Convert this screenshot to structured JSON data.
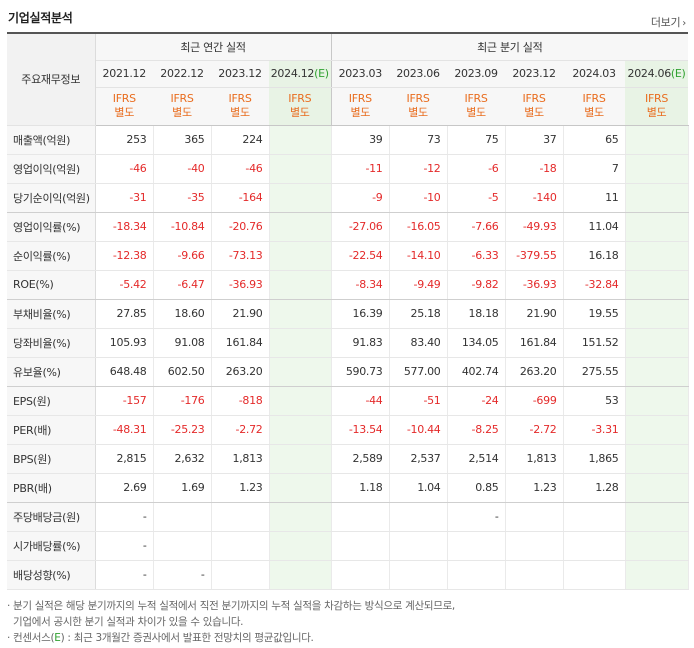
{
  "title": "기업실적분석",
  "more_label": "더보기",
  "more_icon": "chevron-right-icon",
  "header": {
    "row_head": "주요재무정보",
    "annual_group": "최근 연간 실적",
    "quarter_group": "최근 분기 실적",
    "annual_periods": [
      {
        "label": "2021.12",
        "est": ""
      },
      {
        "label": "2022.12",
        "est": ""
      },
      {
        "label": "2023.12",
        "est": ""
      },
      {
        "label": "2024.12",
        "est": "(E)"
      }
    ],
    "quarter_periods": [
      {
        "label": "2023.03",
        "est": ""
      },
      {
        "label": "2023.06",
        "est": ""
      },
      {
        "label": "2023.09",
        "est": ""
      },
      {
        "label": "2023.12",
        "est": ""
      },
      {
        "label": "2024.03",
        "est": ""
      },
      {
        "label": "2024.06",
        "est": "(E)"
      }
    ],
    "ifrs_top": "IFRS",
    "ifrs_bottom": "별도"
  },
  "rows": [
    {
      "label": "매출액(억원)",
      "annual": [
        "253",
        "365",
        "224",
        ""
      ],
      "quarter": [
        "39",
        "73",
        "75",
        "37",
        "65",
        ""
      ]
    },
    {
      "label": "영업이익(억원)",
      "annual": [
        "-46",
        "-40",
        "-46",
        ""
      ],
      "quarter": [
        "-11",
        "-12",
        "-6",
        "-18",
        "7",
        ""
      ]
    },
    {
      "label": "당기순이익(억원)",
      "annual": [
        "-31",
        "-35",
        "-164",
        ""
      ],
      "quarter": [
        "-9",
        "-10",
        "-5",
        "-140",
        "11",
        ""
      ]
    },
    {
      "label": "영업이익률(%)",
      "annual": [
        "-18.34",
        "-10.84",
        "-20.76",
        ""
      ],
      "quarter": [
        "-27.06",
        "-16.05",
        "-7.66",
        "-49.93",
        "11.04",
        ""
      ]
    },
    {
      "label": "순이익률(%)",
      "annual": [
        "-12.38",
        "-9.66",
        "-73.13",
        ""
      ],
      "quarter": [
        "-22.54",
        "-14.10",
        "-6.33",
        "-379.55",
        "16.18",
        ""
      ]
    },
    {
      "label": "ROE(%)",
      "annual": [
        "-5.42",
        "-6.47",
        "-36.93",
        ""
      ],
      "quarter": [
        "-8.34",
        "-9.49",
        "-9.82",
        "-36.93",
        "-32.84",
        ""
      ]
    },
    {
      "label": "부채비율(%)",
      "annual": [
        "27.85",
        "18.60",
        "21.90",
        ""
      ],
      "quarter": [
        "16.39",
        "25.18",
        "18.18",
        "21.90",
        "19.55",
        ""
      ]
    },
    {
      "label": "당좌비율(%)",
      "annual": [
        "105.93",
        "91.08",
        "161.84",
        ""
      ],
      "quarter": [
        "91.83",
        "83.40",
        "134.05",
        "161.84",
        "151.52",
        ""
      ]
    },
    {
      "label": "유보율(%)",
      "annual": [
        "648.48",
        "602.50",
        "263.20",
        ""
      ],
      "quarter": [
        "590.73",
        "577.00",
        "402.74",
        "263.20",
        "275.55",
        ""
      ]
    },
    {
      "label": "EPS(원)",
      "annual": [
        "-157",
        "-176",
        "-818",
        ""
      ],
      "quarter": [
        "-44",
        "-51",
        "-24",
        "-699",
        "53",
        ""
      ]
    },
    {
      "label": "PER(배)",
      "annual": [
        "-48.31",
        "-25.23",
        "-2.72",
        ""
      ],
      "quarter": [
        "-13.54",
        "-10.44",
        "-8.25",
        "-2.72",
        "-3.31",
        ""
      ]
    },
    {
      "label": "BPS(원)",
      "annual": [
        "2,815",
        "2,632",
        "1,813",
        ""
      ],
      "quarter": [
        "2,589",
        "2,537",
        "2,514",
        "1,813",
        "1,865",
        ""
      ]
    },
    {
      "label": "PBR(배)",
      "annual": [
        "2.69",
        "1.69",
        "1.23",
        ""
      ],
      "quarter": [
        "1.18",
        "1.04",
        "0.85",
        "1.23",
        "1.28",
        ""
      ]
    },
    {
      "label": "주당배당금(원)",
      "annual": [
        "-",
        "",
        "",
        ""
      ],
      "quarter": [
        "",
        "",
        "-",
        "",
        "",
        ""
      ]
    },
    {
      "label": "시가배당률(%)",
      "annual": [
        "-",
        "",
        "",
        ""
      ],
      "quarter": [
        "",
        "",
        "",
        "",
        "",
        ""
      ]
    },
    {
      "label": "배당성향(%)",
      "annual": [
        "-",
        "-",
        "",
        ""
      ],
      "quarter": [
        "",
        "",
        "",
        "",
        "",
        ""
      ]
    }
  ],
  "notes": {
    "line1": "분기 실적은 해당 분기까지의 누적 실적에서 직전 분기까지의 누적 실적을 차감하는 방식으로 계산되므로,",
    "line2": "기업에서 공시한 분기 실적과 차이가 있을 수 있습니다.",
    "line3_prefix": "컨센서스(",
    "line3_e": "E",
    "line3_suffix": ") : 최근 3개월간 증권사에서 발표한 전망치의 평균값입니다."
  },
  "colors": {
    "negative": "#e42a2a",
    "ifrs": "#e96d1f",
    "estimate_bg": "#eef8ec",
    "estimate_mark": "#32a232"
  }
}
